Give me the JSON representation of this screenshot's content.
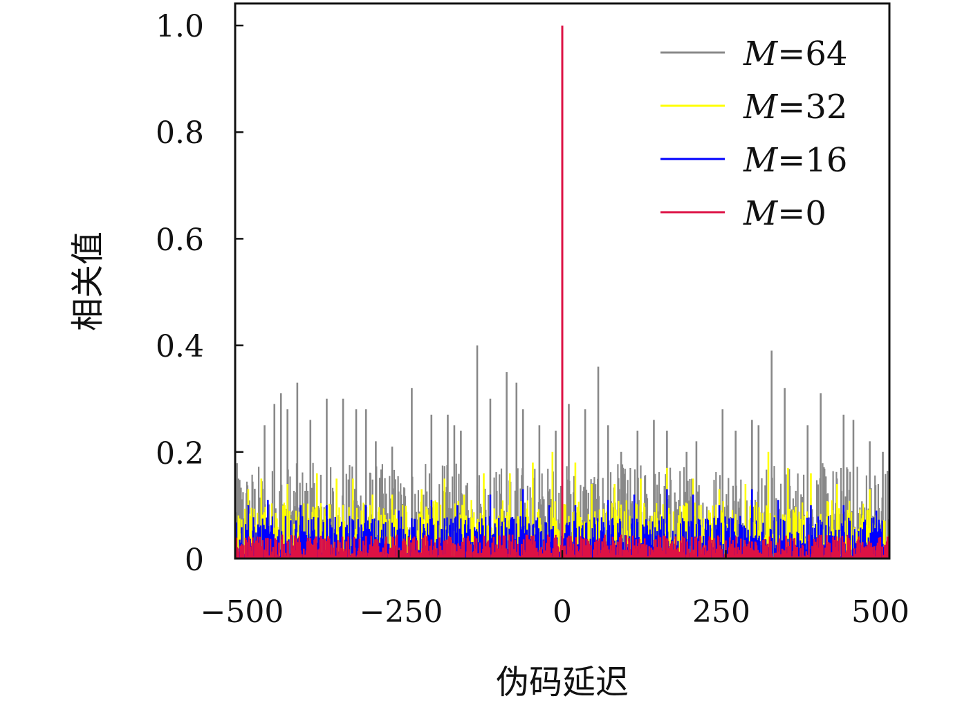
{
  "chart_data": {
    "type": "line",
    "xlabel": "伪码延迟",
    "ylabel": "相关值",
    "xlim": [
      -500,
      500
    ],
    "ylim": [
      0,
      1.0
    ],
    "xticks": [
      "−500",
      "−250",
      "0",
      "250",
      "500"
    ],
    "yticks": [
      "0",
      "0.2",
      "0.4",
      "0.6",
      "0.8",
      "1.0"
    ],
    "grid": false,
    "legend_placement": "top-right",
    "legend": [
      {
        "var": "M",
        "eq": "=64",
        "color": "#888888"
      },
      {
        "var": "M",
        "eq": "=32",
        "color": "#ffff00"
      },
      {
        "var": "M",
        "eq": "=16",
        "color": "#0000ff"
      },
      {
        "var": "M",
        "eq": "=0",
        "color": "#dd1144"
      }
    ],
    "series": [
      {
        "name": "M=64",
        "color": "#888888",
        "peak_x": [
          -495,
          -470,
          -455,
          -440,
          -430,
          -420,
          -405,
          -385,
          -360,
          -335,
          -315,
          -300,
          -285,
          -260,
          -230,
          -200,
          -175,
          -165,
          -155,
          -130,
          -110,
          -85,
          -70,
          -60,
          -35,
          -10,
          10,
          35,
          55,
          70,
          90,
          115,
          140,
          160,
          190,
          205,
          245,
          265,
          290,
          300,
          320,
          340,
          375,
          395,
          430,
          445,
          470,
          490
        ],
        "peak_y": [
          0.15,
          0.13,
          0.25,
          0.29,
          0.31,
          0.28,
          0.33,
          0.26,
          0.3,
          0.3,
          0.28,
          0.28,
          0.22,
          0.21,
          0.32,
          0.27,
          0.27,
          0.25,
          0.24,
          0.4,
          0.3,
          0.35,
          0.33,
          0.28,
          0.25,
          0.24,
          0.29,
          0.28,
          0.36,
          0.25,
          0.2,
          0.24,
          0.26,
          0.24,
          0.2,
          0.22,
          0.28,
          0.24,
          0.26,
          0.25,
          0.39,
          0.32,
          0.25,
          0.31,
          0.27,
          0.26,
          0.22,
          0.2
        ],
        "baseline_max": 0.18
      },
      {
        "name": "M=32",
        "color": "#ffff00",
        "peak_x": [
          -480,
          -460,
          -420,
          -375,
          -345,
          -320,
          -290,
          -260,
          -215,
          -180,
          -150,
          -120,
          -80,
          -45,
          -15,
          0,
          20,
          45,
          80,
          120,
          160,
          200,
          240,
          280,
          315,
          345,
          380,
          420,
          470
        ],
        "peak_y": [
          0.13,
          0.15,
          0.14,
          0.16,
          0.15,
          0.15,
          0.12,
          0.12,
          0.13,
          0.15,
          0.12,
          0.16,
          0.16,
          0.18,
          0.2,
          0.19,
          0.18,
          0.14,
          0.14,
          0.15,
          0.17,
          0.15,
          0.13,
          0.14,
          0.2,
          0.17,
          0.16,
          0.14,
          0.13
        ],
        "baseline_max": 0.11
      },
      {
        "name": "M=16",
        "color": "#0000ff",
        "peak_x": [
          -480,
          -450,
          -400,
          -360,
          -300,
          -250,
          -200,
          -160,
          -110,
          -60,
          -20,
          20,
          70,
          110,
          160,
          200,
          240,
          290,
          330,
          380,
          430,
          480
        ],
        "peak_y": [
          0.1,
          0.11,
          0.1,
          0.1,
          0.1,
          0.09,
          0.11,
          0.1,
          0.12,
          0.13,
          0.1,
          0.1,
          0.11,
          0.12,
          0.13,
          0.12,
          0.1,
          0.13,
          0.11,
          0.1,
          0.1,
          0.09
        ],
        "baseline_max": 0.08
      },
      {
        "name": "M=0",
        "color": "#dd1144",
        "peak_x": [
          0
        ],
        "peak_y": [
          1.0
        ],
        "baseline_max": 0.045
      }
    ]
  }
}
